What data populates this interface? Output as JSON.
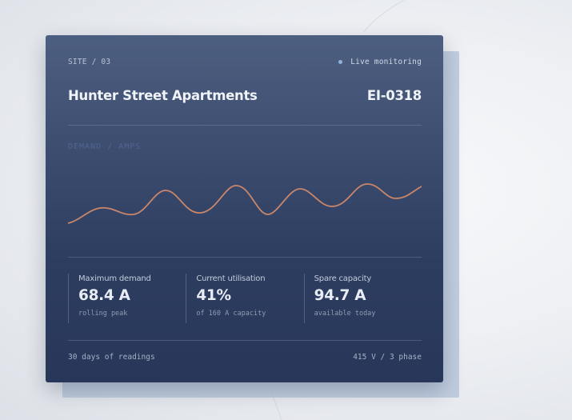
{
  "card": {
    "site_label": "SITE / 03",
    "status": "Live monitoring",
    "title": "Hunter Street Apartments",
    "code": "EI-0318",
    "chart_label": "DEMAND / AMPS",
    "accent_color": "#c9866a",
    "status_dot_color": "#8fb4dc"
  },
  "stats": [
    {
      "label": "Maximum demand",
      "value": "68.4 A",
      "sub": "rolling peak"
    },
    {
      "label": "Current utilisation",
      "value": "41%",
      "sub": "of 160 A capacity"
    },
    {
      "label": "Spare capacity",
      "value": "94.7 A",
      "sub": "available today"
    }
  ],
  "footer": {
    "left": "30 days of readings",
    "right": "415 V / 3 phase"
  }
}
